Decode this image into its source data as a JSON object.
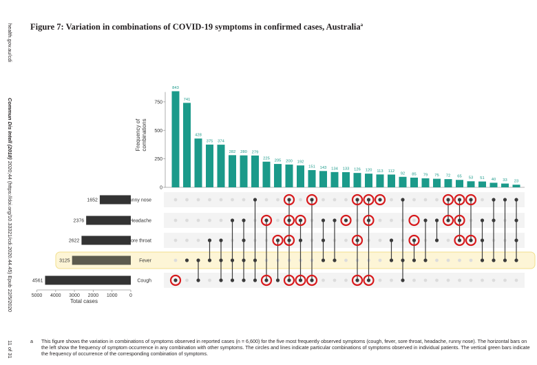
{
  "margin": {
    "source": "health.gov.au/cdi",
    "citation_journal": "Commun Dis Intell (2018)",
    "citation_doi": " 2020;44 (https://doi.org/10.33321/cdi.2020.44.45) Epub 22/5/2020",
    "page": "11 of 31"
  },
  "figure": {
    "title": "Figure 7: Variation in combinations of COVID-19 symptoms in confirmed cases, Australia",
    "title_sup": "a"
  },
  "footnote": {
    "mark": "a",
    "text": "This figure shows the variation in combinations of symptoms observed in reported cases (n = 6,600) for the five most frequently observed symptoms (cough, fever, sore throat, headache, runny nose). The horizontal bars on the left show the frequency of symptom occurrence in any combination with other symptoms. The circles and lines indicate particular combinations of symptoms observed in individual patients. The vertical green bars indicate the frequency of occurrence of the corresponding combination of symptoms."
  },
  "colors": {
    "bar_teal": "#1b9a8a",
    "set_bar": "#333333",
    "highlight_row": "#fdf5d6",
    "highlight_border": "#f2df8c",
    "highlight_circle": "#d7191c",
    "dot_active": "#3a3a3a",
    "dot_inactive": "#dcdcdc"
  },
  "chart_data": {
    "type": "bar",
    "ylabel": "Frequency of combinations",
    "ylim": [
      0,
      860
    ],
    "yticks": [
      0,
      250,
      500,
      750
    ],
    "values": [
      843,
      741,
      428,
      375,
      374,
      282,
      280,
      279,
      225,
      205,
      200,
      192,
      151,
      143,
      134,
      133,
      126,
      120,
      113,
      112,
      92,
      85,
      79,
      75,
      72,
      65,
      53,
      51,
      40,
      33,
      23
    ],
    "sets": [
      "Runny nose",
      "Headache",
      "Sore throat",
      "Fever",
      "Cough"
    ],
    "set_sizes": [
      1652,
      2376,
      2622,
      3125,
      4561
    ],
    "set_xlabel": "Total cases",
    "set_xticks": [
      5000,
      4000,
      3000,
      2000,
      1000,
      0
    ],
    "highlighted_set": "Fever",
    "combinations": [
      [
        "Cough"
      ],
      [
        "Fever"
      ],
      [
        "Fever",
        "Cough"
      ],
      [
        "Sore throat",
        "Fever"
      ],
      [
        "Sore throat",
        "Fever",
        "Cough"
      ],
      [
        "Headache",
        "Fever",
        "Cough"
      ],
      [
        "Headache",
        "Sore throat",
        "Fever",
        "Cough"
      ],
      [
        "Runny nose",
        "Fever",
        "Cough"
      ],
      [
        "Headache",
        "Cough"
      ],
      [
        "Sore throat",
        "Cough"
      ],
      [
        "Runny nose",
        "Headache",
        "Sore throat",
        "Cough"
      ],
      [
        "Headache",
        "Sore throat",
        "Cough"
      ],
      [
        "Runny nose",
        "Cough"
      ],
      [
        "Headache",
        "Sore throat",
        "Fever"
      ],
      [
        "Headache",
        "Fever"
      ],
      [
        "Headache"
      ],
      [
        "Runny nose",
        "Sore throat",
        "Cough"
      ],
      [
        "Runny nose",
        "Headache",
        "Cough"
      ],
      [
        "Runny nose"
      ],
      [
        "Sore throat",
        "Fever"
      ],
      [
        "Runny nose",
        "Fever",
        "Cough"
      ],
      [
        "Sore throat",
        "Fever"
      ],
      [
        "Headache",
        "Fever"
      ],
      [
        "Headache",
        "Sore throat"
      ],
      [
        "Runny nose",
        "Headache"
      ],
      [
        "Runny nose",
        "Headache",
        "Sore throat"
      ],
      [
        "Runny nose",
        "Sore throat"
      ],
      [
        "Headache",
        "Sore throat",
        "Fever"
      ],
      [
        "Runny nose",
        "Headache",
        "Fever"
      ],
      [
        "Runny nose",
        "Fever"
      ],
      [
        "Runny nose",
        "Headache",
        "Sore throat",
        "Fever"
      ]
    ],
    "highlighted_circles": [
      [
        0,
        "Cough"
      ],
      [
        8,
        "Headache"
      ],
      [
        8,
        "Cough"
      ],
      [
        9,
        "Sore throat"
      ],
      [
        10,
        "Runny nose"
      ],
      [
        10,
        "Headache"
      ],
      [
        10,
        "Sore throat"
      ],
      [
        10,
        "Cough"
      ],
      [
        11,
        "Headache"
      ],
      [
        11,
        "Cough"
      ],
      [
        12,
        "Runny nose"
      ],
      [
        12,
        "Cough"
      ],
      [
        15,
        "Headache"
      ],
      [
        16,
        "Runny nose"
      ],
      [
        16,
        "Sore throat"
      ],
      [
        16,
        "Cough"
      ],
      [
        17,
        "Runny nose"
      ],
      [
        17,
        "Headache"
      ],
      [
        17,
        "Cough"
      ],
      [
        18,
        "Runny nose"
      ],
      [
        21,
        "Headache"
      ],
      [
        21,
        "Sore throat"
      ],
      [
        24,
        "Runny nose"
      ],
      [
        24,
        "Headache"
      ],
      [
        25,
        "Runny nose"
      ],
      [
        25,
        "Headache"
      ],
      [
        25,
        "Sore throat"
      ],
      [
        26,
        "Runny nose"
      ],
      [
        26,
        "Sore throat"
      ]
    ]
  }
}
